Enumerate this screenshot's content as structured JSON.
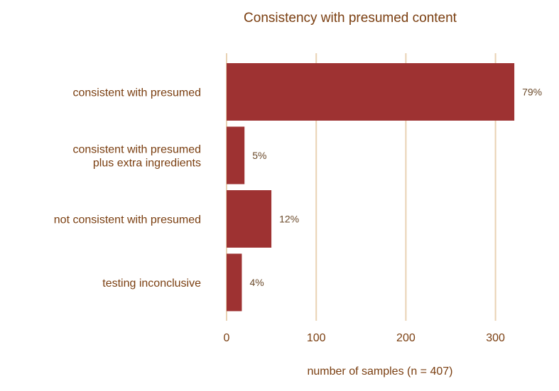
{
  "chart_data": {
    "type": "bar",
    "orientation": "horizontal",
    "title": "Consistency with presumed content",
    "xlabel": "number of samples (n = 407)",
    "ylabel": "",
    "categories": [
      [
        "consistent with presumed"
      ],
      [
        "consistent with presumed",
        "plus extra ingredients"
      ],
      [
        "not consistent with presumed"
      ],
      [
        "testing inconclusive"
      ]
    ],
    "values": [
      321,
      20,
      50,
      17
    ],
    "data_labels": [
      "79%",
      "5%",
      "12%",
      "4%"
    ],
    "xlim": [
      0,
      330
    ],
    "xticks": [
      0,
      100,
      200,
      300
    ],
    "grid": "vertical",
    "legend": "none"
  },
  "colors": {
    "bar": "#9e3232",
    "grid": "#e9d2b3",
    "text": "#7a3e10",
    "data_label": "#6b4a2a"
  }
}
